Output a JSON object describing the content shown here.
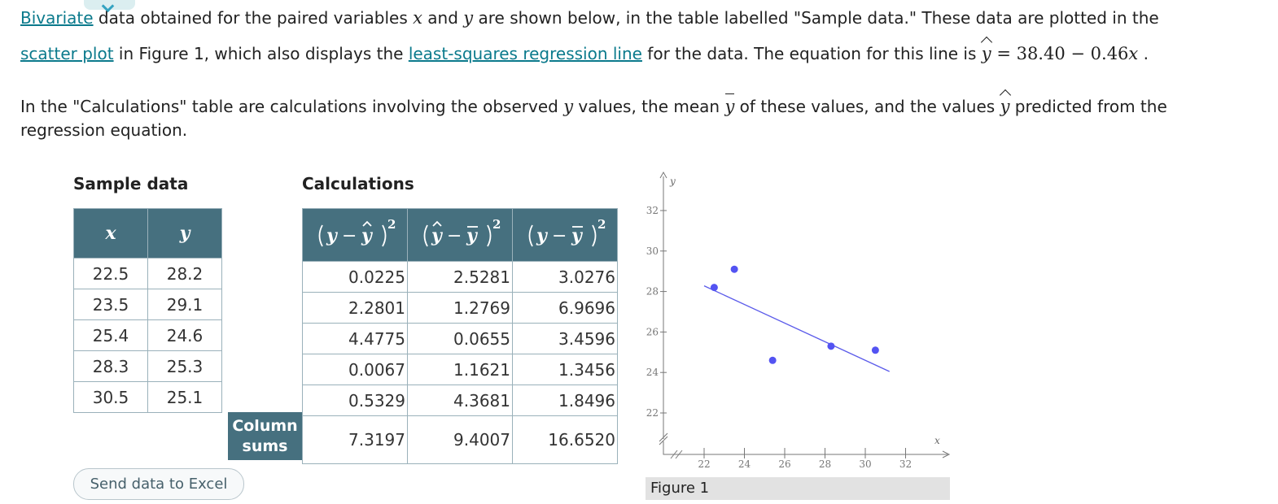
{
  "intro": {
    "line1": {
      "link_bivariate": "Bivariate",
      "t1": " data obtained for the paired variables ",
      "t2": " and ",
      "t3": " are shown below, in the table labelled \"Sample data.\" These data are plotted in the",
      "var_x": "x",
      "var_y": "y"
    },
    "line2": {
      "link_scatter": "scatter plot",
      "t1": " in Figure 1, which also displays the ",
      "link_lsrl": "least-squares regression line",
      "t2": " for the data. The equation for this line is ",
      "eq_yhat": "y",
      "eq_rhs": " = 38.40 − 0.46",
      "eq_x": "x",
      "t3": " ."
    },
    "line3": {
      "t1": "In the \"Calculations\" table are calculations involving the observed ",
      "var_y": "y",
      "t2": " values, the mean ",
      "var_ybar": "y",
      "t3": " of these values, and the values ",
      "var_yhat": "y",
      "t4": " predicted from the"
    },
    "line4": "regression equation."
  },
  "sample_table": {
    "caption": "Sample data",
    "headers": [
      "x",
      "y"
    ],
    "rows": [
      [
        "22.5",
        "28.2"
      ],
      [
        "23.5",
        "29.1"
      ],
      [
        "25.4",
        "24.6"
      ],
      [
        "28.3",
        "25.3"
      ],
      [
        "30.5",
        "25.1"
      ]
    ]
  },
  "calc_table": {
    "caption": "Calculations",
    "rows": [
      [
        "0.0225",
        "2.5281",
        "3.0276"
      ],
      [
        "2.2801",
        "1.2769",
        "6.9696"
      ],
      [
        "4.4775",
        "0.0655",
        "3.4596"
      ],
      [
        "0.0067",
        "1.1621",
        "1.3456"
      ],
      [
        "0.5329",
        "4.3681",
        "1.8496"
      ]
    ],
    "column_sums_label": "Column sums",
    "sums": [
      "7.3197",
      "9.4007",
      "16.6520"
    ]
  },
  "excel_button": "Send data to Excel",
  "figure_caption": "Figure 1",
  "chart_data": {
    "type": "scatter",
    "xlabel": "x",
    "ylabel": "y",
    "x_ticks": [
      22,
      24,
      26,
      28,
      30,
      32
    ],
    "y_ticks": [
      22,
      24,
      26,
      28,
      30,
      32
    ],
    "points": [
      {
        "x": 22.5,
        "y": 28.2
      },
      {
        "x": 23.5,
        "y": 29.1
      },
      {
        "x": 25.4,
        "y": 24.6
      },
      {
        "x": 28.3,
        "y": 25.3
      },
      {
        "x": 30.5,
        "y": 25.1
      }
    ],
    "regression_line": {
      "intercept": 38.4,
      "slope": -0.46,
      "x_start": 22.0,
      "x_end": 31.2
    },
    "point_color": "#5353f2",
    "line_color": "#5b5bea"
  }
}
